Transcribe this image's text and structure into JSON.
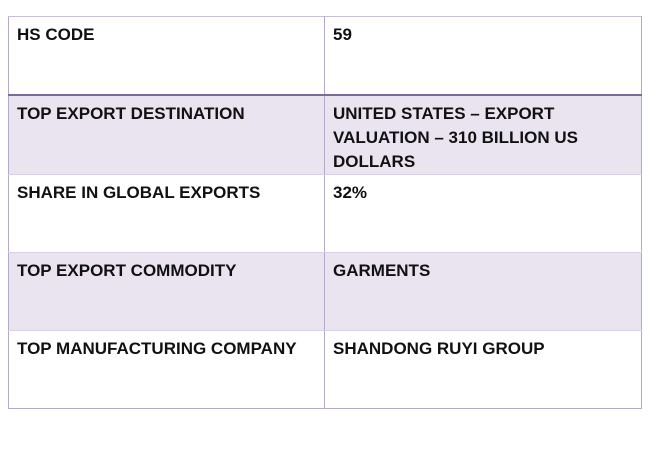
{
  "table": {
    "rows": [
      {
        "label": "HS CODE",
        "value": "59"
      },
      {
        "label": "TOP EXPORT DESTINATION",
        "value": "UNITED STATES – EXPORT VALUATION – 310 BILLION US DOLLARS"
      },
      {
        "label": "SHARE IN GLOBAL EXPORTS",
        "value": "32%"
      },
      {
        "label": "TOP EXPORT COMMODITY",
        "value": "GARMENTS"
      },
      {
        "label": "TOP MANUFACTURING COMPANY",
        "value": "SHANDONG RUYI GROUP"
      }
    ],
    "colors": {
      "shaded_row": "#e9e4f0",
      "border": "#b4a9c9",
      "header_separator": "#7b6a9c"
    }
  }
}
